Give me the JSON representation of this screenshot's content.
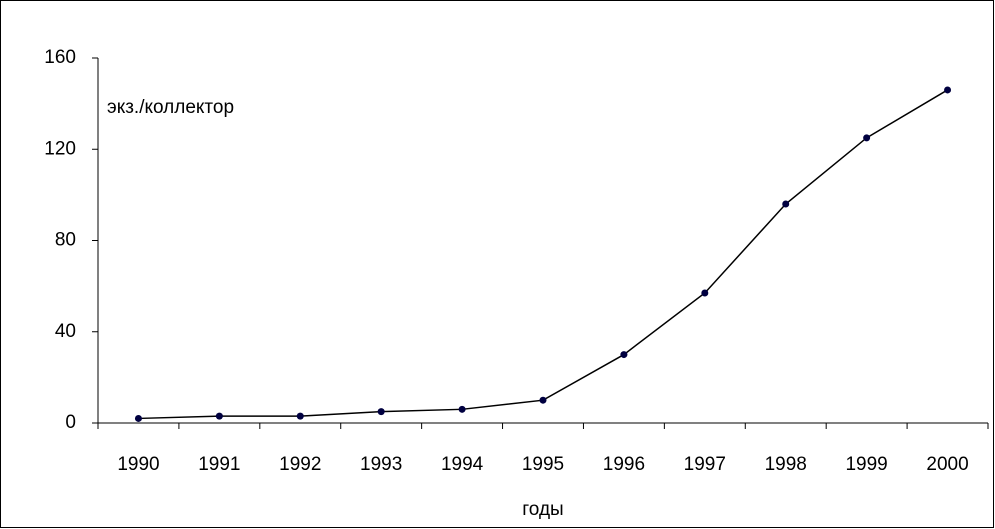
{
  "chart_data": {
    "type": "line",
    "y_label": "экз./коллектор",
    "x_label": "годы",
    "categories": [
      "1990",
      "1991",
      "1992",
      "1993",
      "1994",
      "1995",
      "1996",
      "1997",
      "1998",
      "1999",
      "2000"
    ],
    "values": [
      2,
      3,
      3,
      5,
      6,
      10,
      30,
      57,
      96,
      125,
      146
    ],
    "color": "#000000",
    "marker_color": "#000040",
    "ylim": [
      0,
      160
    ],
    "yticks": [
      0,
      40,
      80,
      120,
      160
    ],
    "grid": false
  }
}
